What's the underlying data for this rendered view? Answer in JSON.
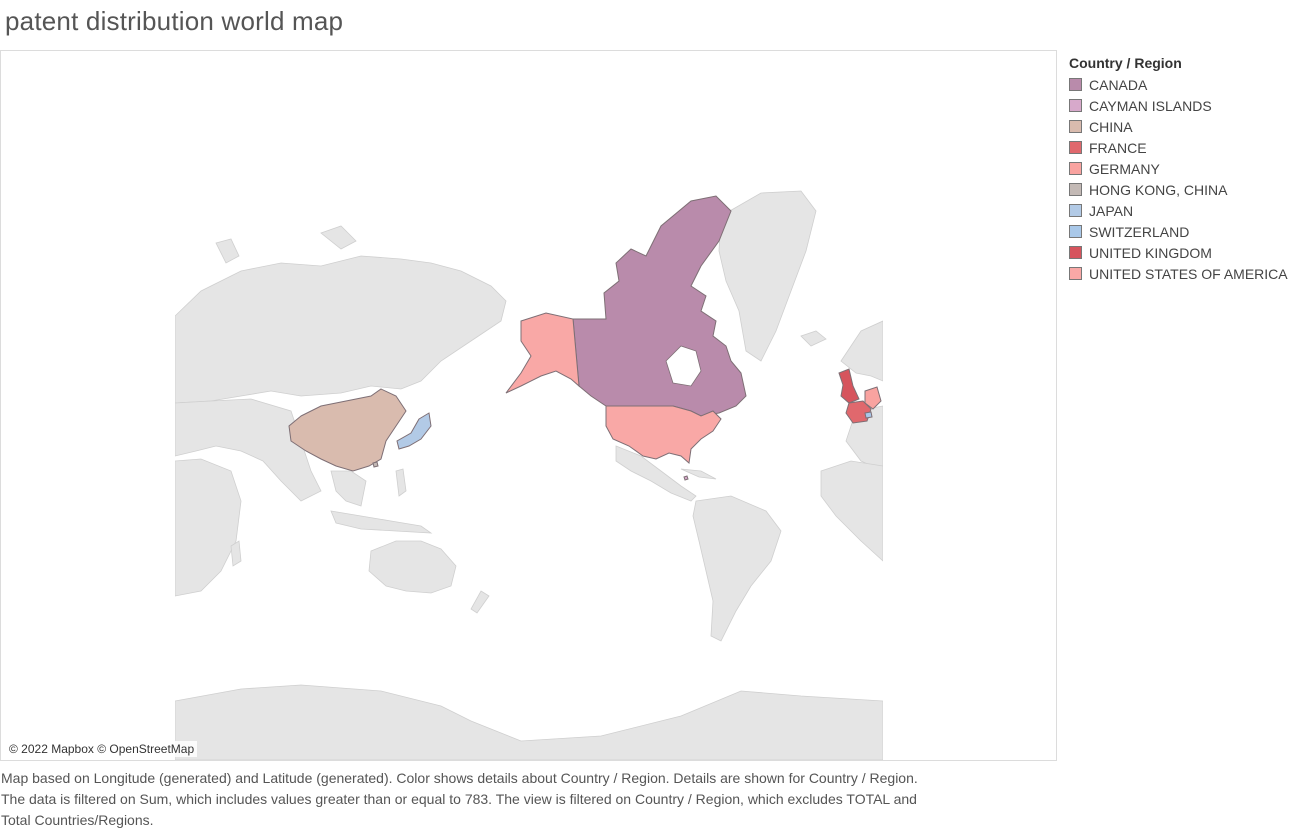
{
  "title": "patent distribution world map",
  "legend": {
    "title": "Country / Region",
    "items": [
      {
        "label": "CANADA",
        "color": "#b98bab"
      },
      {
        "label": "CAYMAN ISLANDS",
        "color": "#d7a9cb"
      },
      {
        "label": "CHINA",
        "color": "#d9bbae"
      },
      {
        "label": "FRANCE",
        "color": "#e0686d"
      },
      {
        "label": "GERMANY",
        "color": "#f9a3a0"
      },
      {
        "label": "HONG KONG, CHINA",
        "color": "#c3b9b5"
      },
      {
        "label": "JAPAN",
        "color": "#b2cae6"
      },
      {
        "label": "SWITZERLAND",
        "color": "#a9c8e9"
      },
      {
        "label": "UNITED KINGDOM",
        "color": "#d6545d"
      },
      {
        "label": "UNITED STATES OF AMERICA",
        "color": "#f9a8a6"
      }
    ]
  },
  "map": {
    "attribution": "© 2022 Mapbox © OpenStreetMap",
    "base_land_color": "#e5e5e5",
    "border_color": "#8a7f84"
  },
  "caption": {
    "line1": "Map based on Longitude (generated) and Latitude (generated).  Color shows details about Country / Region.  Details are shown for Country / Region.",
    "line2": "The data is filtered on Sum, which includes values greater than or equal to 783. The view is filtered on Country / Region, which excludes TOTAL and",
    "line3": "Total Countries/Regions."
  }
}
